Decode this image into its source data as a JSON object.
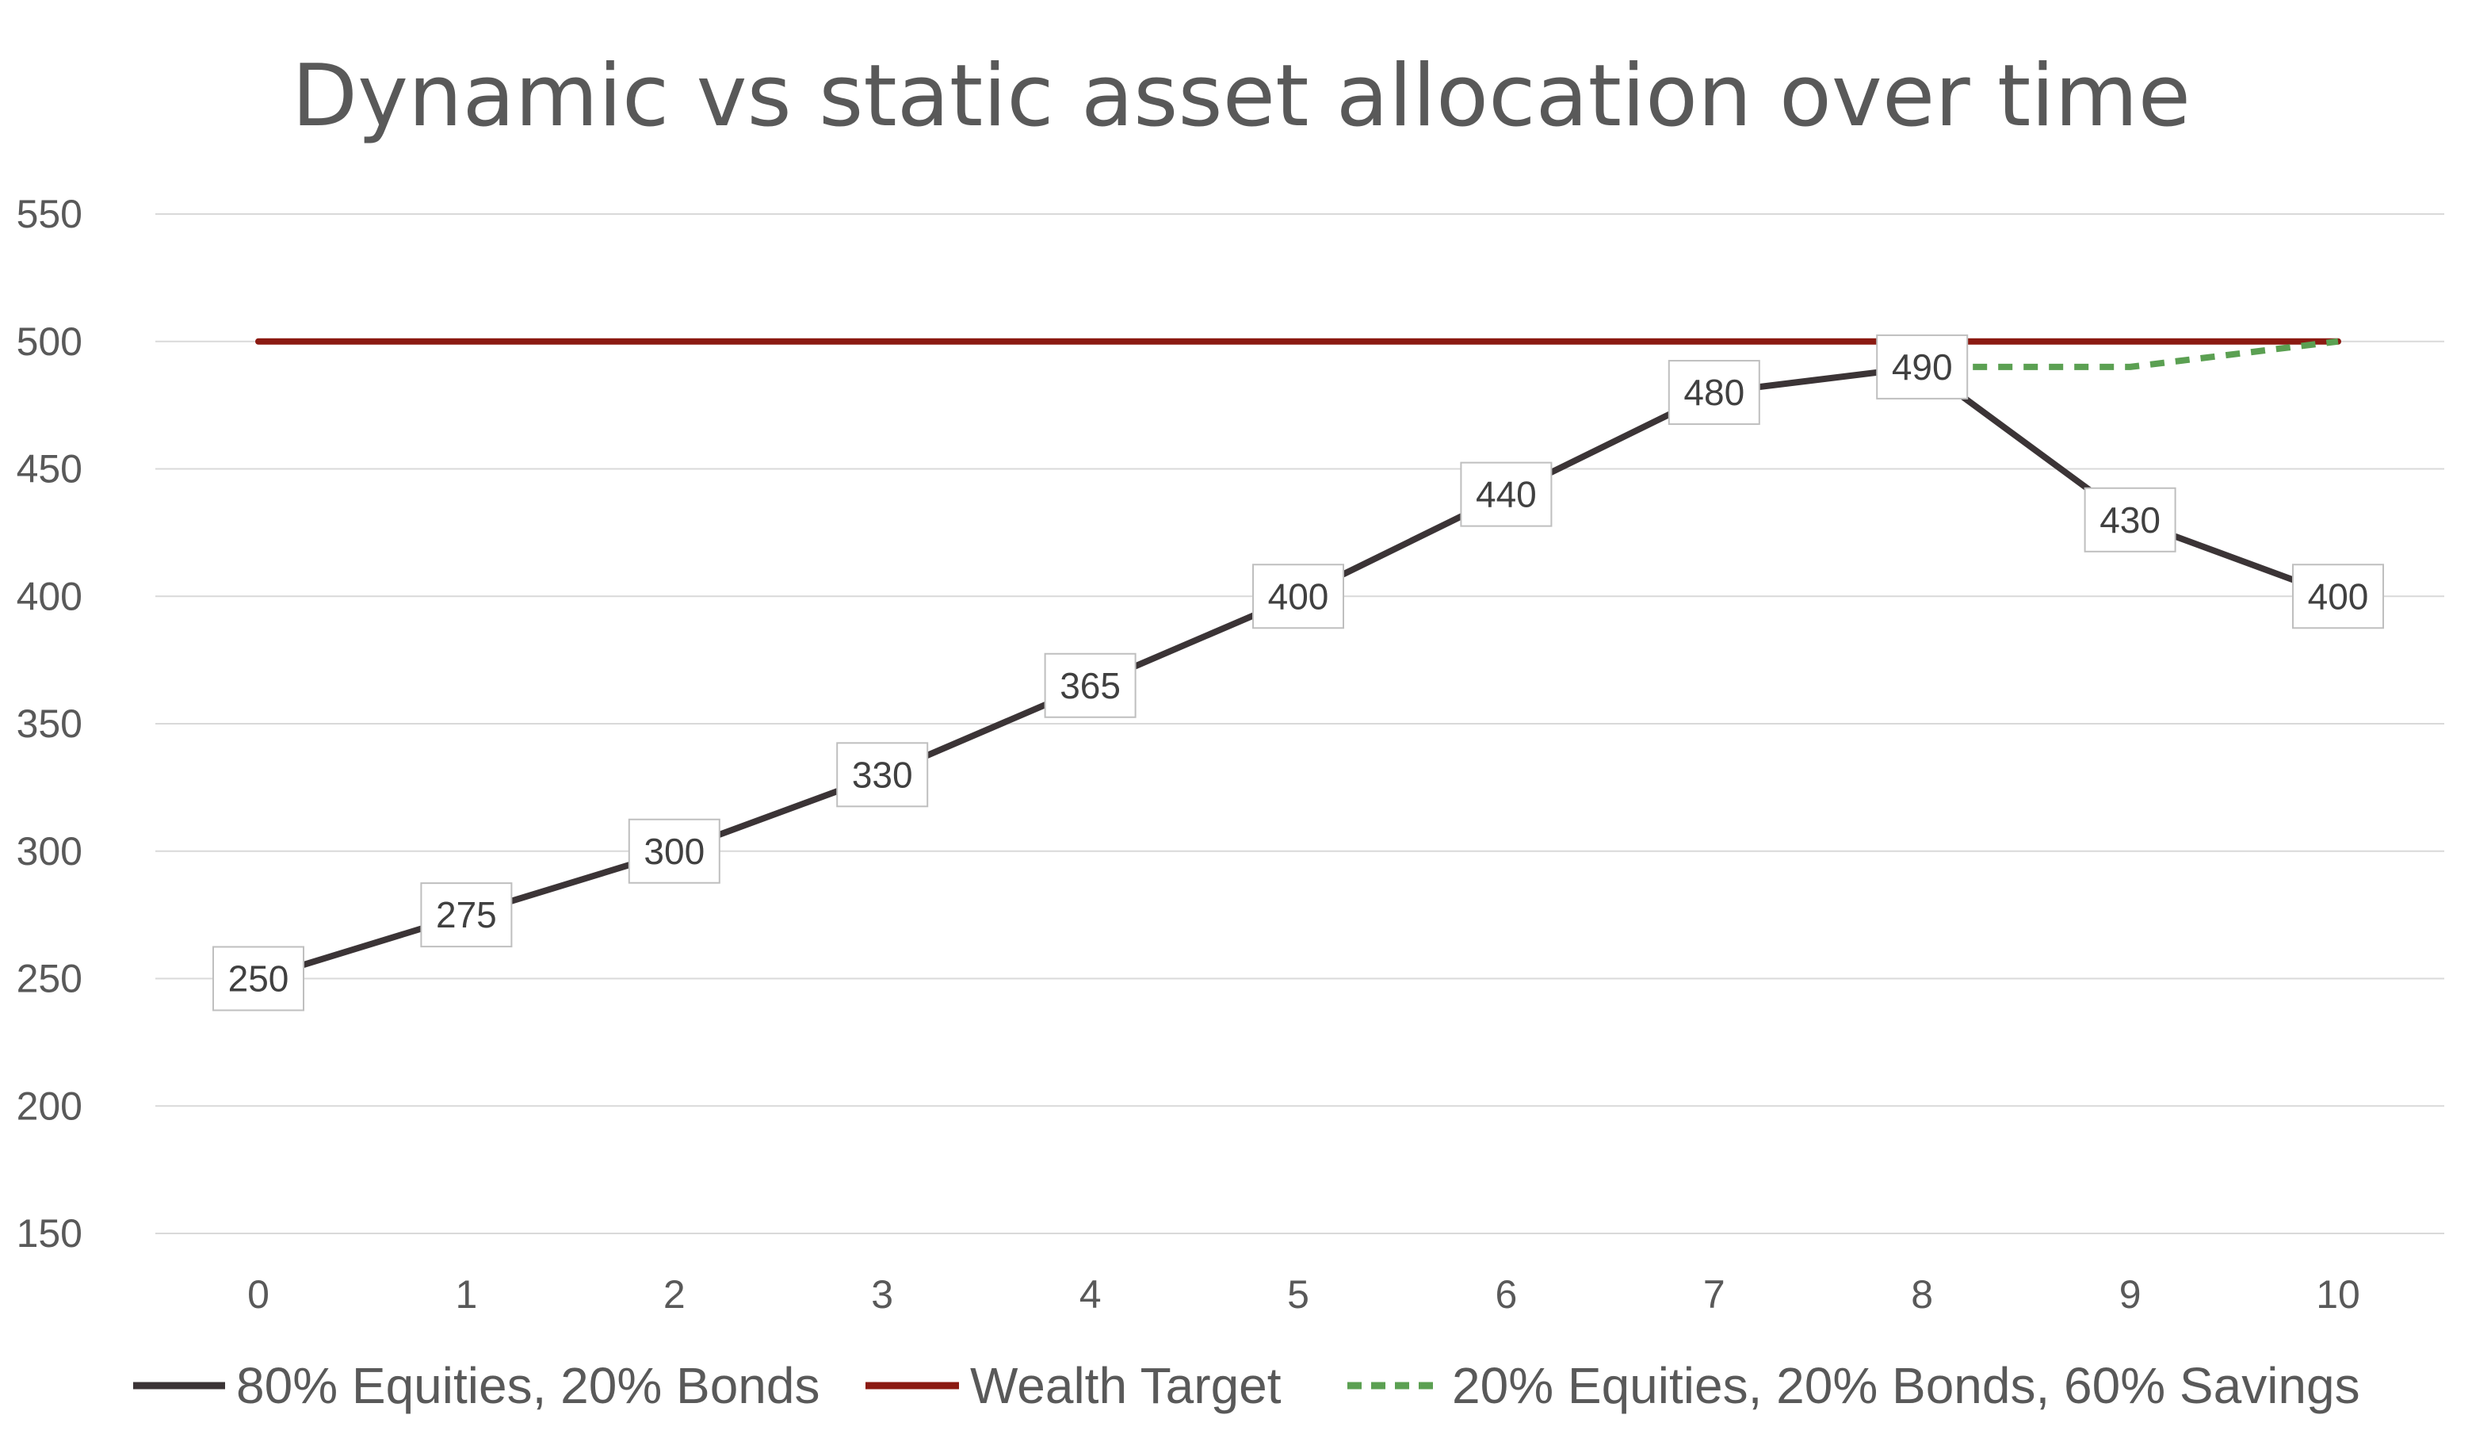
{
  "chart_data": {
    "type": "line",
    "title": "Dynamic vs static asset allocation over time",
    "xlabel": "",
    "ylabel": "",
    "x": [
      0,
      1,
      2,
      3,
      4,
      5,
      6,
      7,
      8,
      9,
      10
    ],
    "x_tick_labels": [
      "0",
      "1",
      "2",
      "3",
      "4",
      "5",
      "6",
      "7",
      "8",
      "9",
      "10"
    ],
    "ylim": [
      150,
      550
    ],
    "y_tick_labels": [
      "150",
      "200",
      "250",
      "300",
      "350",
      "400",
      "450",
      "500",
      "550"
    ],
    "grid": true,
    "legend_position": "bottom",
    "series": [
      {
        "name": "80% Equities, 20% Bonds",
        "color": "#3b3436",
        "style": "solid",
        "data_labels": true,
        "values": [
          250,
          275,
          300,
          330,
          365,
          400,
          440,
          480,
          490,
          430,
          400
        ]
      },
      {
        "name": "Wealth Target",
        "color": "#8b1a12",
        "style": "solid",
        "data_labels": false,
        "values": [
          500,
          500,
          500,
          500,
          500,
          500,
          500,
          500,
          500,
          500,
          500
        ]
      },
      {
        "name": "20% Equities, 20% Bonds, 60% Savings",
        "color": "#5ba052",
        "style": "dashed",
        "data_labels": false,
        "values": [
          null,
          null,
          null,
          null,
          null,
          null,
          null,
          null,
          490,
          490,
          500
        ]
      }
    ]
  }
}
